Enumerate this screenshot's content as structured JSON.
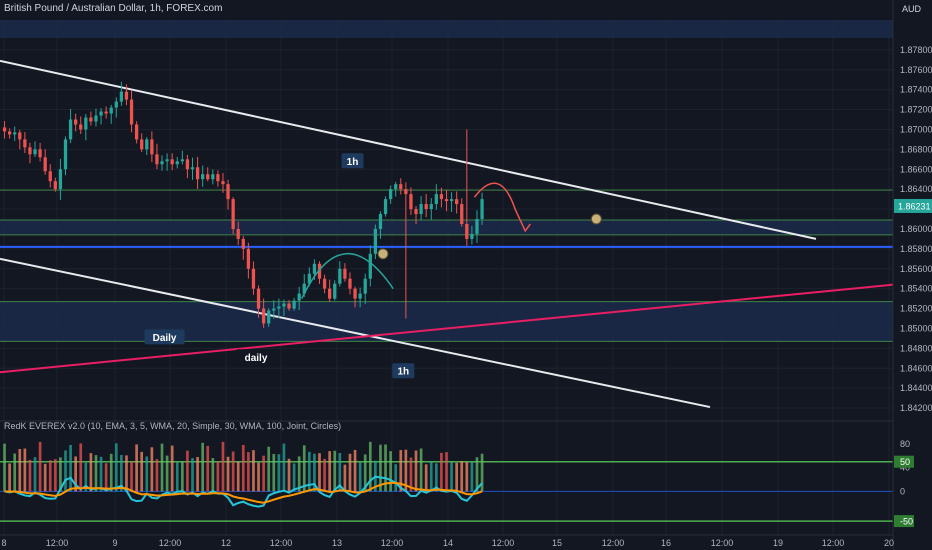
{
  "header": {
    "title": "British Pound / Australian Dollar, 1h, FOREX.com",
    "currency": "AUD"
  },
  "indicator": {
    "title": "RedK EVEREX v2.0 (10, EMA, 3, 5, WMA, 20, Simple, 30, WMA, 100, Joint, Circles)"
  },
  "colors": {
    "background": "#131722",
    "bull": "#26a69a",
    "bear": "#ef5350",
    "channel": "#e8eaed",
    "trend": "#e91e63",
    "support": "#2962ff",
    "zone": "#1c2a4a",
    "level_line": "#4caf50",
    "fast_line": "#26c6da",
    "slow_line": "#ff9800"
  },
  "chart_data": [
    {
      "type": "candlestick",
      "name": "price",
      "x_ticks": [
        "8",
        "12:00",
        "9",
        "12:00",
        "12",
        "12:00",
        "13",
        "12:00",
        "14",
        "12:00",
        "15",
        "12:00",
        "16",
        "12:00",
        "19",
        "12:00",
        "20"
      ],
      "ylim": [
        1.841,
        1.881
      ],
      "y_ticks": [
        "1.87800",
        "1.87600",
        "1.87400",
        "1.87200",
        "1.87000",
        "1.86800",
        "1.86600",
        "1.86400",
        "1.86200",
        "1.86000",
        "1.85800",
        "1.85600",
        "1.85400",
        "1.85200",
        "1.85000",
        "1.84800",
        "1.84600",
        "1.84400",
        "1.84200"
      ],
      "last_price": "1.86231",
      "close_path": [
        1.8698,
        1.8695,
        1.8697,
        1.869,
        1.8682,
        1.8675,
        1.868,
        1.8672,
        1.8658,
        1.8648,
        1.864,
        1.866,
        1.869,
        1.871,
        1.8705,
        1.87,
        1.8712,
        1.8708,
        1.8714,
        1.8718,
        1.8716,
        1.8722,
        1.8728,
        1.8738,
        1.873,
        1.8705,
        1.869,
        1.868,
        1.869,
        1.8675,
        1.8665,
        1.8668,
        1.867,
        1.8665,
        1.8668,
        1.867,
        1.866,
        1.8662,
        1.865,
        1.8655,
        1.865,
        1.8655,
        1.8648,
        1.8645,
        1.863,
        1.86,
        1.859,
        1.858,
        1.856,
        1.854,
        1.852,
        1.8505,
        1.8518,
        1.852,
        1.8522,
        1.8525,
        1.852,
        1.8528,
        1.8535,
        1.8545,
        1.8555,
        1.8565,
        1.855,
        1.854,
        1.853,
        1.8545,
        1.856,
        1.855,
        1.854,
        1.853,
        1.8535,
        1.855,
        1.8575,
        1.86,
        1.8615,
        1.863,
        1.864,
        1.8645,
        1.864,
        1.8635,
        1.862,
        1.8615,
        1.8625,
        1.862,
        1.8625,
        1.8635,
        1.863,
        1.8628,
        1.863,
        1.8625,
        1.8605,
        1.859,
        1.8595,
        1.861,
        1.863
      ],
      "levels": [
        1.8639,
        1.8609,
        1.8594,
        1.8582,
        1.8527,
        1.8487
      ],
      "support_line": 1.8582,
      "zones": [
        [
          1.8594,
          1.8609
        ],
        [
          1.8487,
          1.8527
        ],
        [
          1.8792,
          1.881
        ]
      ],
      "annotations": [
        {
          "text": "1h",
          "x_bar": 69,
          "price": 1.8668
        },
        {
          "text": "Daily",
          "x_bar": 32,
          "price": 1.8491
        },
        {
          "text": "daily",
          "x_bar": 50,
          "price": 1.8471
        },
        {
          "text": "1h",
          "x_bar": 79,
          "price": 1.8457
        }
      ]
    },
    {
      "type": "oscillator",
      "name": "RedK EVEREX v2.0",
      "ylim": [
        -65,
        100
      ],
      "y_ticks": [
        80,
        40,
        0
      ],
      "level_labels": [
        "50",
        "-50"
      ],
      "levels": [
        50,
        0,
        -50
      ]
    }
  ]
}
